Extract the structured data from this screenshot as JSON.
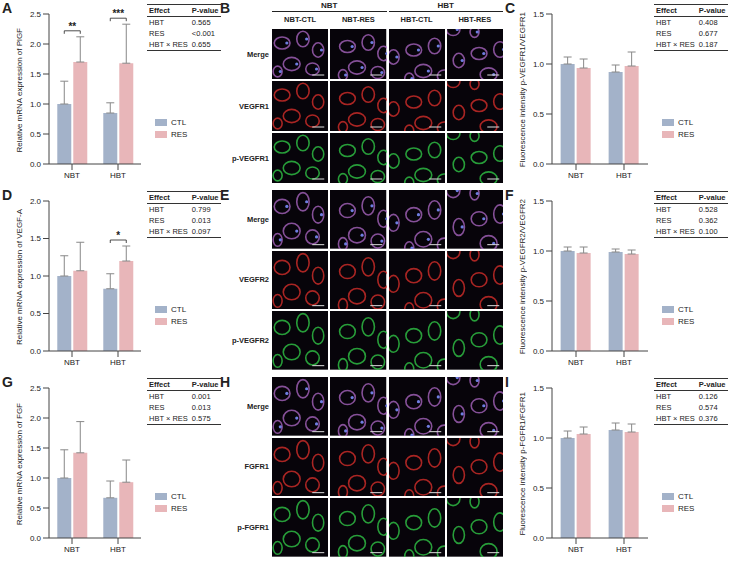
{
  "chart_data": [
    {
      "panel": "A",
      "type": "bar",
      "y_label": "Relative mRNA expression of PlGF",
      "categories": [
        "NBT",
        "HBT"
      ],
      "series": [
        {
          "name": "CTL",
          "color": "#a3b2c9",
          "values": [
            1.0,
            0.85
          ],
          "errors": [
            0.38,
            0.17
          ]
        },
        {
          "name": "RES",
          "color": "#e8b6b9",
          "values": [
            1.7,
            1.68
          ],
          "errors": [
            0.42,
            0.65
          ]
        }
      ],
      "ylim": [
        0,
        2.5
      ],
      "yticks": [
        {
          "value": 0,
          "label": "0.0"
        },
        {
          "value": 0.5,
          "label": "0.5"
        },
        {
          "value": 1,
          "label": "1.0"
        },
        {
          "value": 1.5,
          "label": "1.5"
        },
        {
          "value": 2,
          "label": "2.0"
        },
        {
          "value": 2.5,
          "label": "2.5"
        }
      ],
      "annotations": [
        {
          "category": "NBT",
          "label": "**"
        },
        {
          "category": "HBT",
          "label": "***"
        }
      ],
      "table": {
        "columns": [
          "Effect",
          "P-value"
        ],
        "rows": [
          [
            "HBT",
            "0.565"
          ],
          [
            "RES",
            "<0.001"
          ],
          [
            "HBT × RES",
            "0.655"
          ]
        ]
      },
      "legend": "bottom right"
    },
    {
      "panel": "C",
      "type": "bar",
      "y_label": "Fluorescence intensity p-VEGFR1/VEGFR1",
      "categories": [
        "NBT",
        "HBT"
      ],
      "series": [
        {
          "name": "CTL",
          "color": "#a3b2c9",
          "values": [
            1.0,
            0.92
          ],
          "errors": [
            0.07,
            0.07
          ]
        },
        {
          "name": "RES",
          "color": "#e8b6b9",
          "values": [
            0.96,
            0.98
          ],
          "errors": [
            0.09,
            0.14
          ]
        }
      ],
      "ylim": [
        0,
        1.5
      ],
      "yticks": [
        {
          "value": 0,
          "label": "0.0"
        },
        {
          "value": 0.5,
          "label": "0.5"
        },
        {
          "value": 1,
          "label": "1.0"
        },
        {
          "value": 1.5,
          "label": "1.5"
        }
      ],
      "annotations": [],
      "table": {
        "columns": [
          "Effect",
          "P-value"
        ],
        "rows": [
          [
            "HBT",
            "0.408"
          ],
          [
            "RES",
            "0.677"
          ],
          [
            "HBT × RES",
            "0.187"
          ]
        ]
      },
      "legend": "bottom right"
    },
    {
      "panel": "D",
      "type": "bar",
      "y_label": "Relative mRNA expression of VEGF-A",
      "categories": [
        "NBT",
        "HBT"
      ],
      "series": [
        {
          "name": "CTL",
          "color": "#a3b2c9",
          "values": [
            1.0,
            0.83
          ],
          "errors": [
            0.27,
            0.2
          ]
        },
        {
          "name": "RES",
          "color": "#e8b6b9",
          "values": [
            1.07,
            1.2
          ],
          "errors": [
            0.38,
            0.2
          ]
        }
      ],
      "ylim": [
        0,
        2
      ],
      "yticks": [
        {
          "value": 0,
          "label": "0.0"
        },
        {
          "value": 0.5,
          "label": "0.5"
        },
        {
          "value": 1,
          "label": "1.0"
        },
        {
          "value": 1.5,
          "label": "1.5"
        },
        {
          "value": 2,
          "label": "2.0"
        }
      ],
      "annotations": [
        {
          "category": "HBT",
          "label": "*"
        }
      ],
      "table": {
        "columns": [
          "Effect",
          "P-value"
        ],
        "rows": [
          [
            "HBT",
            "0.799"
          ],
          [
            "RES",
            "0.013"
          ],
          [
            "HBT × RES",
            "0.097"
          ]
        ]
      },
      "legend": "bottom right"
    },
    {
      "panel": "F",
      "type": "bar",
      "y_label": "Fluorescence intensity p-VEGFR2/VEGFR2",
      "categories": [
        "NBT",
        "HBT"
      ],
      "series": [
        {
          "name": "CTL",
          "color": "#a3b2c9",
          "values": [
            1.0,
            0.99
          ],
          "errors": [
            0.04,
            0.03
          ]
        },
        {
          "name": "RES",
          "color": "#e8b6b9",
          "values": [
            0.98,
            0.97
          ],
          "errors": [
            0.06,
            0.04
          ]
        }
      ],
      "ylim": [
        0,
        1.5
      ],
      "yticks": [
        {
          "value": 0,
          "label": "0.0"
        },
        {
          "value": 0.5,
          "label": "0.5"
        },
        {
          "value": 1,
          "label": "1.0"
        },
        {
          "value": 1.5,
          "label": "1.5"
        }
      ],
      "annotations": [],
      "table": {
        "columns": [
          "Effect",
          "P-value"
        ],
        "rows": [
          [
            "HBT",
            "0.528"
          ],
          [
            "RES",
            "0.362"
          ],
          [
            "HBT × RES",
            "0.100"
          ]
        ]
      },
      "legend": "bottom right"
    },
    {
      "panel": "G",
      "type": "bar",
      "y_label": "Relative mRNA expression of FGF",
      "categories": [
        "NBT",
        "HBT"
      ],
      "series": [
        {
          "name": "CTL",
          "color": "#a3b2c9",
          "values": [
            1.0,
            0.67
          ],
          "errors": [
            0.47,
            0.28
          ]
        },
        {
          "name": "RES",
          "color": "#e8b6b9",
          "values": [
            1.42,
            0.93
          ],
          "errors": [
            0.52,
            0.37
          ]
        }
      ],
      "ylim": [
        0,
        2.5
      ],
      "yticks": [
        {
          "value": 0,
          "label": "0.0"
        },
        {
          "value": 0.5,
          "label": "0.5"
        },
        {
          "value": 1,
          "label": "1.0"
        },
        {
          "value": 1.5,
          "label": "1.5"
        },
        {
          "value": 2,
          "label": "2.0"
        },
        {
          "value": 2.5,
          "label": "2.5"
        }
      ],
      "annotations": [],
      "table": {
        "columns": [
          "Effect",
          "P-value"
        ],
        "rows": [
          [
            "HBT",
            "0.001"
          ],
          [
            "RES",
            "0.013"
          ],
          [
            "HBT × RES",
            "0.575"
          ]
        ]
      },
      "legend": "bottom right"
    },
    {
      "panel": "I",
      "type": "bar",
      "y_label": "Fluorescence intensity p-FGFR1/FGFR1",
      "categories": [
        "NBT",
        "HBT"
      ],
      "series": [
        {
          "name": "CTL",
          "color": "#a3b2c9",
          "values": [
            1.0,
            1.08
          ],
          "errors": [
            0.07,
            0.07
          ]
        },
        {
          "name": "RES",
          "color": "#e8b6b9",
          "values": [
            1.04,
            1.06
          ],
          "errors": [
            0.07,
            0.08
          ]
        }
      ],
      "ylim": [
        0,
        1.5
      ],
      "yticks": [
        {
          "value": 0,
          "label": "0.0"
        },
        {
          "value": 0.5,
          "label": "0.5"
        },
        {
          "value": 1,
          "label": "1.0"
        },
        {
          "value": 1.5,
          "label": "1.5"
        }
      ],
      "annotations": [],
      "table": {
        "columns": [
          "Effect",
          "P-value"
        ],
        "rows": [
          [
            "HBT",
            "0.126"
          ],
          [
            "RES",
            "0.574"
          ],
          [
            "HBT × RES",
            "0.376"
          ]
        ]
      },
      "legend": "bottom right"
    }
  ],
  "image_panels": [
    {
      "panel": "B",
      "group_heads": [
        "NBT",
        "HBT"
      ],
      "column_heads": [
        "NBT-CTL",
        "NBT-RES",
        "HBT-CTL",
        "HBT-RES"
      ],
      "row_labels": [
        "Merge",
        "VEGFR1",
        "p-VEGFR1"
      ]
    },
    {
      "panel": "E",
      "row_labels": [
        "Merge",
        "VEGFR2",
        "p-VEGFR2"
      ]
    },
    {
      "panel": "H",
      "row_labels": [
        "Merge",
        "FGFR1",
        "p-FGFR1"
      ]
    }
  ]
}
